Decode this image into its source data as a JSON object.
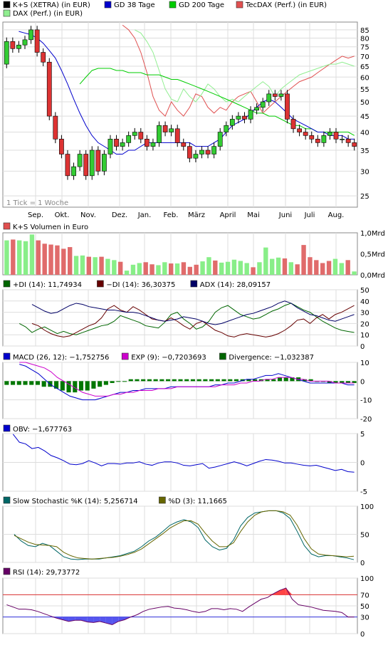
{
  "chart_data": [
    {
      "type": "candlestick",
      "legend": [
        {
          "label": "K+S (XETRA) (in EUR)",
          "color": "#000000"
        },
        {
          "label": "GD 38 Tage",
          "color": "#0000cc"
        },
        {
          "label": "GD 200 Tage",
          "color": "#00cc00"
        },
        {
          "label": "TecDAX (Perf.) (in EUR)",
          "color": "#e05050"
        },
        {
          "label": "DAX (Perf.) (in EUR)",
          "color": "#90ee90"
        }
      ],
      "note": "1 Tick = 1 Woche",
      "y_scale": "log",
      "ylim": [
        23,
        90
      ],
      "y_ticks": [
        25,
        30,
        35,
        40,
        45,
        50,
        55,
        60,
        65,
        70,
        75,
        80,
        85
      ],
      "x_labels": [
        "Sep.",
        "Okt.",
        "Nov.",
        "Dez.",
        "Jan.",
        "Feb.",
        "März",
        "April",
        "Mai",
        "Juni",
        "Juli",
        "Aug."
      ],
      "candles": [
        [
          66,
          78
        ],
        [
          78,
          74
        ],
        [
          74,
          76
        ],
        [
          76,
          79
        ],
        [
          79,
          85
        ],
        [
          85,
          72
        ],
        [
          72,
          67
        ],
        [
          67,
          45
        ],
        [
          45,
          38
        ],
        [
          38,
          34
        ],
        [
          34,
          29
        ],
        [
          29,
          31
        ],
        [
          31,
          34
        ],
        [
          34,
          29
        ],
        [
          29,
          35
        ],
        [
          35,
          30
        ],
        [
          30,
          34
        ],
        [
          34,
          38
        ],
        [
          38,
          36
        ],
        [
          36,
          37
        ],
        [
          37,
          39
        ],
        [
          39,
          40
        ],
        [
          40,
          38
        ],
        [
          38,
          36
        ],
        [
          36,
          37
        ],
        [
          37,
          42
        ],
        [
          42,
          40
        ],
        [
          40,
          41
        ],
        [
          41,
          37
        ],
        [
          37,
          36
        ],
        [
          36,
          33
        ],
        [
          33,
          34
        ],
        [
          34,
          35
        ],
        [
          35,
          34
        ],
        [
          34,
          36
        ],
        [
          36,
          40
        ],
        [
          40,
          42
        ],
        [
          42,
          44
        ],
        [
          44,
          45
        ],
        [
          45,
          44
        ],
        [
          44,
          47
        ],
        [
          47,
          48
        ],
        [
          48,
          50
        ],
        [
          50,
          53
        ],
        [
          53,
          52
        ],
        [
          52,
          53
        ],
        [
          53,
          44
        ],
        [
          44,
          41
        ],
        [
          41,
          40
        ],
        [
          40,
          39
        ],
        [
          39,
          38
        ],
        [
          38,
          37
        ],
        [
          37,
          39
        ],
        [
          39,
          40
        ],
        [
          40,
          38
        ],
        [
          38,
          38
        ],
        [
          38,
          37
        ],
        [
          37,
          36
        ]
      ],
      "gd38": [
        84,
        83,
        82,
        80,
        77,
        73,
        69,
        63,
        57,
        51,
        46,
        42,
        39,
        37,
        36,
        35,
        34,
        34,
        35,
        35,
        36,
        37,
        37,
        37,
        37,
        37,
        37,
        37,
        37,
        36,
        36,
        36,
        37,
        38,
        40,
        42,
        43,
        44,
        46,
        48,
        50,
        51,
        50,
        48,
        46,
        44,
        43,
        42,
        41,
        40,
        40,
        39,
        39,
        39,
        38,
        38
      ],
      "gd200": [
        57,
        60,
        63,
        64,
        64,
        64,
        63,
        63,
        62,
        62,
        62,
        61,
        61,
        61,
        60,
        59,
        59,
        58,
        57,
        56,
        55,
        54,
        53,
        52,
        51,
        50,
        49,
        48,
        47,
        46,
        46,
        45,
        45,
        44,
        43,
        42,
        42,
        41,
        41,
        40,
        40,
        40,
        40,
        40,
        40,
        39
      ],
      "tecdax": [
        88,
        85,
        80,
        72,
        62,
        52,
        47,
        45,
        50,
        47,
        45,
        48,
        53,
        52,
        48,
        46,
        48,
        47,
        50,
        52,
        53,
        54,
        50,
        46,
        48,
        50,
        52,
        54,
        56,
        58,
        59,
        60,
        62,
        64,
        66,
        68,
        70,
        69,
        70
      ],
      "dax": [
        85,
        83,
        78,
        72,
        63,
        55,
        51,
        50,
        55,
        52,
        50,
        53,
        57,
        55,
        52,
        50,
        51,
        50,
        52,
        54,
        56,
        58,
        56,
        52,
        55,
        57,
        59,
        61,
        62,
        63,
        64,
        65,
        66,
        66,
        67,
        66,
        65
      ],
      "gd38_color": "#0000cc",
      "gd200_color": "#00cc00",
      "tecdax_color": "#e05050",
      "dax_color": "#90ee90",
      "up_color": "#33cc33",
      "down_color": "#dd3333"
    },
    {
      "type": "bar",
      "legend": [
        {
          "label": "K+S Volumen in Euro",
          "color": "#e05050"
        }
      ],
      "y_ticks": [
        "1,0Mrd",
        "0,5Mrd",
        "0,0Mrd"
      ],
      "ylim": [
        0,
        1.0
      ],
      "values": [
        0.82,
        0.84,
        0.82,
        0.8,
        0.96,
        0.82,
        0.74,
        0.72,
        0.7,
        0.62,
        0.66,
        0.45,
        0.46,
        0.43,
        0.42,
        0.43,
        0.38,
        0.35,
        0.31,
        0.1,
        0.24,
        0.28,
        0.3,
        0.25,
        0.23,
        0.3,
        0.27,
        0.27,
        0.3,
        0.19,
        0.24,
        0.32,
        0.42,
        0.34,
        0.29,
        0.31,
        0.36,
        0.33,
        0.28,
        0.18,
        0.3,
        0.65,
        0.38,
        0.41,
        0.39,
        0.3,
        0.25,
        0.71,
        0.42,
        0.35,
        0.28,
        0.33,
        0.38,
        0.28,
        0.35,
        0.08
      ]
    },
    {
      "type": "line",
      "legend": [
        {
          "label": "+DI (14): 11,74934",
          "color": "#006600"
        },
        {
          "label": "−DI (14): 36,30375",
          "color": "#660000"
        },
        {
          "label": "ADX (14): 28,09157",
          "color": "#000066"
        }
      ],
      "ylim": [
        0,
        50
      ],
      "y_ticks": [
        0,
        10,
        20,
        30,
        40,
        50
      ],
      "series": [
        {
          "name": "+DI (14): 11,74934",
          "color": "#006600",
          "values": [
            20,
            17,
            12,
            15,
            17,
            14,
            11,
            13,
            11,
            10,
            12,
            14,
            16,
            18,
            19,
            22,
            27,
            25,
            23,
            21,
            18,
            17,
            16,
            21,
            28,
            30,
            24,
            20,
            15,
            17,
            22,
            30,
            34,
            36,
            32,
            28,
            26,
            24,
            25,
            28,
            31,
            33,
            36,
            38,
            35,
            32,
            30,
            26,
            22,
            19,
            16,
            14,
            13,
            12
          ]
        },
        {
          "name": "−DI (14): 36,30375",
          "color": "#660000",
          "values": [
            20,
            18,
            14,
            11,
            9,
            8,
            9,
            12,
            15,
            18,
            20,
            25,
            33,
            36,
            32,
            30,
            35,
            32,
            28,
            24,
            23,
            22,
            25,
            22,
            18,
            15,
            20,
            22,
            18,
            14,
            12,
            9,
            8,
            10,
            11,
            10,
            9,
            8,
            9,
            11,
            14,
            18,
            23,
            24,
            20,
            25,
            28,
            24,
            28,
            30,
            33,
            36
          ]
        },
        {
          "name": "ADX (14): 28,09157",
          "color": "#000066",
          "values": [
            37,
            34,
            31,
            29,
            30,
            33,
            36,
            38,
            37,
            35,
            34,
            33,
            32,
            32,
            31,
            30,
            30,
            29,
            27,
            25,
            23,
            22,
            23,
            24,
            26,
            25,
            24,
            22,
            20,
            19,
            20,
            22,
            24,
            26,
            28,
            29,
            31,
            33,
            35,
            38,
            40,
            38,
            34,
            31,
            28,
            27,
            25,
            23,
            22,
            24,
            26,
            28
          ]
        }
      ]
    },
    {
      "type": "bar",
      "legend": [
        {
          "label": "MACD (26, 12): −1,752756",
          "color": "#0000cc"
        },
        {
          "label": "EXP (9): −0,7203693",
          "color": "#cc00cc"
        },
        {
          "label": "Divergence: −1,032387",
          "color": "#006600"
        }
      ],
      "ylim": [
        -20,
        10
      ],
      "y_ticks": [
        10,
        0,
        -10,
        -20
      ],
      "divergence": [
        -2,
        -2,
        -2,
        -2,
        -2,
        -2,
        -3,
        -3,
        -4,
        -5,
        -6,
        -6,
        -5,
        -5,
        -4,
        -3,
        -2,
        -1,
        0,
        0,
        1,
        1,
        1,
        1,
        1,
        1,
        1,
        1,
        1,
        1,
        1,
        1,
        1,
        1,
        1,
        1,
        1,
        1,
        1,
        1,
        1,
        1,
        1,
        1,
        2,
        2,
        2,
        2,
        1,
        1,
        0,
        0,
        -1,
        -1,
        -1,
        -1,
        -1
      ],
      "series": [
        {
          "name": "MACD (26, 12): −1,752756",
          "color": "#0000cc",
          "values": [
            9,
            8,
            6,
            4,
            1,
            -2,
            -4,
            -6,
            -8,
            -9,
            -10,
            -10,
            -10,
            -9,
            -8,
            -7,
            -6,
            -6,
            -5,
            -5,
            -4,
            -4,
            -4,
            -4,
            -3,
            -3,
            -3,
            -3,
            -3,
            -3,
            -3,
            -2,
            -2,
            -1,
            -1,
            0,
            1,
            1,
            2,
            3,
            3,
            4,
            3,
            2,
            1,
            0,
            -1,
            -1,
            -1,
            -1,
            -1,
            -1,
            -2,
            -2
          ]
        },
        {
          "name": "EXP (9): −0,7203693",
          "color": "#cc00cc",
          "values": [
            10,
            10,
            9,
            8,
            7,
            5,
            2,
            0,
            -2,
            -4,
            -6,
            -7,
            -8,
            -8,
            -8,
            -7,
            -7,
            -6,
            -6,
            -5,
            -5,
            -5,
            -4,
            -4,
            -4,
            -3,
            -3,
            -3,
            -3,
            -3,
            -3,
            -3,
            -2,
            -2,
            -2,
            -1,
            -1,
            0,
            0,
            1,
            1,
            2,
            2,
            2,
            1,
            1,
            0,
            0,
            0,
            0,
            -1,
            -1,
            -1,
            -1
          ]
        }
      ]
    },
    {
      "type": "line",
      "legend": [
        {
          "label": "OBV: −1,677763",
          "color": "#0000cc"
        }
      ],
      "ylim": [
        -5,
        5
      ],
      "y_ticks": [
        5,
        0,
        -5
      ],
      "series": [
        {
          "name": "OBV: −1,677763",
          "color": "#0000cc",
          "values": [
            4.9,
            3.5,
            3.2,
            2.4,
            2.6,
            2.0,
            1.2,
            0.8,
            0.3,
            -0.3,
            -0.4,
            -0.2,
            0.3,
            -0.1,
            -0.6,
            -0.2,
            -0.2,
            -0.3,
            -0.1,
            -0.1,
            0.1,
            -0.3,
            -0.5,
            -0.1,
            0.1,
            0.1,
            -0.1,
            -0.5,
            -0.6,
            -0.4,
            -0.2,
            -1.0,
            -0.8,
            -0.5,
            -0.2,
            0.1,
            -0.2,
            -0.6,
            -0.2,
            0.2,
            0.5,
            0.4,
            0.2,
            -0.1,
            -0.1,
            -0.3,
            -0.5,
            -0.6,
            -0.5,
            -0.8,
            -1.1,
            -1.4,
            -1.2,
            -1.6,
            -1.7
          ]
        }
      ]
    },
    {
      "type": "line",
      "legend": [
        {
          "label": "Slow Stochastic %K (14): 5,256714",
          "color": "#006666"
        },
        {
          "label": "%D (3): 11,1665",
          "color": "#666600"
        }
      ],
      "ylim": [
        0,
        100
      ],
      "y_ticks": [
        100,
        50,
        0
      ],
      "series": [
        {
          "name": "Slow Stochastic %K (14): 5,256714",
          "color": "#006666",
          "values": [
            50,
            38,
            30,
            28,
            34,
            30,
            20,
            10,
            6,
            5,
            6,
            6,
            6,
            8,
            10,
            12,
            16,
            20,
            28,
            38,
            45,
            55,
            66,
            72,
            76,
            72,
            62,
            40,
            28,
            22,
            25,
            40,
            65,
            80,
            88,
            90,
            92,
            92,
            88,
            78,
            55,
            30,
            15,
            10,
            12,
            12,
            10,
            8,
            5
          ]
        },
        {
          "name": "%D (3): 11,1665",
          "color": "#666600",
          "values": [
            48,
            42,
            36,
            32,
            31,
            30,
            28,
            18,
            12,
            8,
            7,
            6,
            7,
            8,
            9,
            11,
            14,
            18,
            24,
            33,
            42,
            51,
            61,
            68,
            74,
            74,
            68,
            52,
            38,
            28,
            28,
            35,
            55,
            72,
            84,
            90,
            92,
            92,
            90,
            84,
            66,
            42,
            24,
            15,
            13,
            12,
            11,
            10,
            11
          ]
        }
      ]
    },
    {
      "type": "line",
      "legend": [
        {
          "label": "RSI (14): 29,73772",
          "color": "#660066"
        }
      ],
      "ylim": [
        0,
        100
      ],
      "y_ticks": [
        100,
        70,
        50,
        30,
        0
      ],
      "y_tick_labels": [
        "100",
        "70",
        "50",
        "30",
        "0"
      ],
      "upper_band": 70,
      "lower_band": 30,
      "series": [
        {
          "name": "RSI (14): 29,73772",
          "color": "#660066",
          "values": [
            52,
            48,
            44,
            44,
            43,
            40,
            36,
            32,
            28,
            25,
            22,
            24,
            24,
            21,
            20,
            22,
            19,
            16,
            22,
            25,
            30,
            34,
            40,
            44,
            46,
            48,
            49,
            46,
            45,
            43,
            40,
            38,
            40,
            45,
            45,
            43,
            45,
            44,
            40,
            48,
            55,
            62,
            65,
            72,
            78,
            82,
            62,
            52,
            50,
            48,
            45,
            42,
            41,
            40,
            38,
            30,
            30
          ]
        }
      ]
    }
  ]
}
